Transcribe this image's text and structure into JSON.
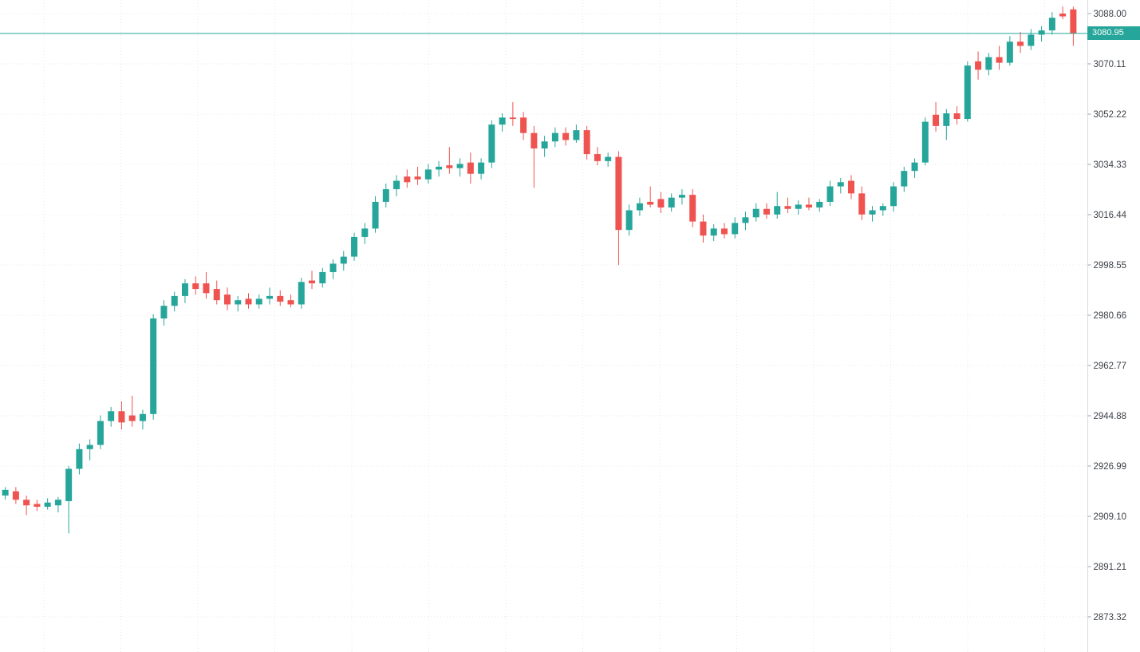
{
  "chart_data": {
    "type": "candlestick",
    "title": "",
    "legend": "none",
    "grid": "dotted",
    "y_axis": {
      "tick_labels": [
        "3088.00",
        "3070.11",
        "3052.22",
        "3034.33",
        "3016.44",
        "2998.55",
        "2980.66",
        "2962.77",
        "2944.88",
        "2926.99",
        "2909.10",
        "2891.21",
        "2873.32"
      ],
      "top_price": 3092.83,
      "bottom_price": 2860.81
    },
    "price_line": {
      "value": 3080.95,
      "label": "3080.95"
    },
    "colors": {
      "up": "#26a69a",
      "down": "#ef5350",
      "grid": "#e3e8ec",
      "axis_line": "#d9dde1",
      "axis_tick": "#9aa0a6",
      "axis_text": "#3c4148",
      "price_line": "#26a69a",
      "price_tag_bg": "#26a69a",
      "price_tag_text": "#ffffff",
      "background": "#ffffff"
    },
    "ohlc": [
      [
        2916.5,
        2919.5,
        2915,
        2918.5
      ],
      [
        2918,
        2919.5,
        2913.5,
        2915
      ],
      [
        2915,
        2916.5,
        2909.5,
        2913
      ],
      [
        2913.5,
        2915,
        2911,
        2912.5
      ],
      [
        2912.5,
        2915.5,
        2911.5,
        2914
      ],
      [
        2913,
        2916,
        2910.5,
        2915
      ],
      [
        2914.5,
        2927,
        2903,
        2926
      ],
      [
        2926,
        2935,
        2924,
        2933
      ],
      [
        2933,
        2936.5,
        2929,
        2934.5
      ],
      [
        2934.5,
        2945,
        2933,
        2943
      ],
      [
        2943,
        2948,
        2941,
        2946.5
      ],
      [
        2946.5,
        2950,
        2940,
        2942.5
      ],
      [
        2945,
        2952,
        2941,
        2943
      ],
      [
        2943,
        2947,
        2940,
        2945.5
      ],
      [
        2945.5,
        2981,
        2943.5,
        2979.5
      ],
      [
        2979.5,
        2986,
        2977,
        2984
      ],
      [
        2984,
        2989,
        2982,
        2987.5
      ],
      [
        2987.5,
        2993.5,
        2985,
        2992
      ],
      [
        2992,
        2994.5,
        2988,
        2990
      ],
      [
        2992,
        2996,
        2986.5,
        2988.5
      ],
      [
        2990,
        2993,
        2984.5,
        2986
      ],
      [
        2988,
        2990.5,
        2982.5,
        2984.5
      ],
      [
        2984.5,
        2987.5,
        2982,
        2986
      ],
      [
        2986.5,
        2988.5,
        2983,
        2984.5
      ],
      [
        2984.5,
        2988,
        2983,
        2986.5
      ],
      [
        2986.5,
        2990.5,
        2984.5,
        2987.5
      ],
      [
        2987.5,
        2989.5,
        2984,
        2985.5
      ],
      [
        2986,
        2988,
        2983.5,
        2984.5
      ],
      [
        2984.5,
        2994,
        2983,
        2992.5
      ],
      [
        2993,
        2996.5,
        2990,
        2992
      ],
      [
        2992,
        2997.5,
        2990.5,
        2996
      ],
      [
        2996,
        3000.5,
        2993.5,
        2999
      ],
      [
        2999,
        3003.5,
        2996.5,
        3001.5
      ],
      [
        3001.5,
        3010,
        3000,
        3008.5
      ],
      [
        3008.5,
        3013.5,
        3006,
        3011.5
      ],
      [
        3011.5,
        3023,
        3010,
        3021
      ],
      [
        3021,
        3027.5,
        3019,
        3025.5
      ],
      [
        3025.5,
        3030.5,
        3023,
        3028.5
      ],
      [
        3030,
        3032.5,
        3026,
        3028
      ],
      [
        3030,
        3033.5,
        3027,
        3029
      ],
      [
        3029,
        3034.5,
        3027.5,
        3032.5
      ],
      [
        3032.5,
        3035.5,
        3030,
        3033.5
      ],
      [
        3034,
        3040.5,
        3031,
        3033
      ],
      [
        3033,
        3036.5,
        3030,
        3034.5
      ],
      [
        3035,
        3038.5,
        3027.5,
        3031
      ],
      [
        3031,
        3036.5,
        3029,
        3035
      ],
      [
        3035,
        3050,
        3033,
        3048.5
      ],
      [
        3048.5,
        3052.5,
        3046,
        3051
      ],
      [
        3051,
        3056.5,
        3048,
        3050.5
      ],
      [
        3051,
        3053,
        3043,
        3045.5
      ],
      [
        3045.5,
        3048,
        3026,
        3040
      ],
      [
        3040,
        3044.5,
        3037,
        3042.5
      ],
      [
        3042.5,
        3047.5,
        3040.5,
        3045.5
      ],
      [
        3045.5,
        3047.5,
        3041,
        3043
      ],
      [
        3043,
        3048.5,
        3042,
        3046.5
      ],
      [
        3046.5,
        3048,
        3036,
        3038
      ],
      [
        3038,
        3040.5,
        3034,
        3035.5
      ],
      [
        3035.5,
        3038.5,
        3033.5,
        3037
      ],
      [
        3037,
        3039,
        2998.5,
        3011
      ],
      [
        3011,
        3020,
        3009,
        3018
      ],
      [
        3018,
        3022.5,
        3016,
        3020.5
      ],
      [
        3021,
        3026.5,
        3019,
        3020
      ],
      [
        3022,
        3024.5,
        3017,
        3019
      ],
      [
        3019,
        3024,
        3017.5,
        3022.5
      ],
      [
        3022.5,
        3025.5,
        3020,
        3023.5
      ],
      [
        3023.5,
        3025.5,
        3012,
        3014
      ],
      [
        3014,
        3016.5,
        3006.5,
        3009
      ],
      [
        3009,
        3013,
        3007,
        3011.5
      ],
      [
        3011.5,
        3013.5,
        3008,
        3009.5
      ],
      [
        3009.5,
        3015.5,
        3008,
        3013.5
      ],
      [
        3013.5,
        3017.5,
        3011,
        3015.5
      ],
      [
        3015.5,
        3020.5,
        3014,
        3018.5
      ],
      [
        3018.5,
        3020.5,
        3015,
        3016.5
      ],
      [
        3016.5,
        3024.5,
        3015,
        3019.5
      ],
      [
        3019.5,
        3022.5,
        3017,
        3018.5
      ],
      [
        3018.5,
        3021.5,
        3016.5,
        3020
      ],
      [
        3020,
        3022.5,
        3018,
        3019
      ],
      [
        3019,
        3022,
        3017.5,
        3021
      ],
      [
        3021,
        3028.5,
        3019.5,
        3026.5
      ],
      [
        3026.5,
        3029.5,
        3024,
        3028
      ],
      [
        3028.5,
        3030.5,
        3022,
        3024
      ],
      [
        3024,
        3026.5,
        3014.5,
        3016.5
      ],
      [
        3016.5,
        3019.5,
        3014,
        3018
      ],
      [
        3018,
        3020.5,
        3016,
        3019.5
      ],
      [
        3019.5,
        3028,
        3017.5,
        3026.5
      ],
      [
        3026.5,
        3033.5,
        3024.5,
        3032
      ],
      [
        3032,
        3036.5,
        3029.5,
        3035
      ],
      [
        3035,
        3051,
        3034,
        3049.5
      ],
      [
        3052,
        3056.5,
        3046,
        3048
      ],
      [
        3048,
        3054,
        3043,
        3052.5
      ],
      [
        3052.5,
        3055,
        3048.5,
        3050.5
      ],
      [
        3050.5,
        3071,
        3049.5,
        3069.5
      ],
      [
        3071,
        3074.5,
        3064.5,
        3068
      ],
      [
        3068,
        3074,
        3066,
        3072.5
      ],
      [
        3072.5,
        3076.5,
        3068,
        3070.5
      ],
      [
        3070.5,
        3080,
        3069.5,
        3078
      ],
      [
        3078,
        3081.5,
        3074,
        3076.5
      ],
      [
        3076.5,
        3082.5,
        3075,
        3080.5
      ],
      [
        3080.5,
        3083.5,
        3078,
        3082
      ],
      [
        3082,
        3088.5,
        3080.5,
        3086.5
      ],
      [
        3088,
        3090.5,
        3086,
        3087
      ],
      [
        3089.5,
        3090.5,
        3076.5,
        3080.95
      ]
    ]
  }
}
